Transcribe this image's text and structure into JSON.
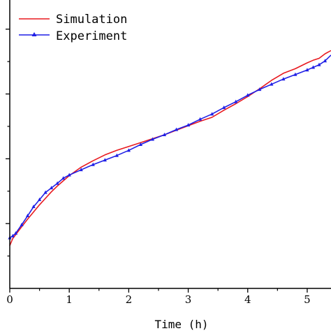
{
  "chart_data": {
    "type": "line",
    "xlabel": "Time (h)",
    "ylabel": "",
    "xlim": [
      0,
      5.4
    ],
    "ylim": [
      0,
      4.45
    ],
    "x_ticks": [
      0,
      1,
      2,
      3,
      4,
      5
    ],
    "x_tick_labels": [
      "0",
      "1",
      "2",
      "3",
      "4",
      "5"
    ],
    "y_major_ticks": [
      1,
      2,
      3,
      4
    ],
    "grid": false,
    "legend_position": "top-left",
    "series": [
      {
        "name": "Simulation",
        "color": "#e8191f",
        "marker": "none",
        "x": [
          0.0,
          0.05,
          0.1,
          0.2,
          0.3,
          0.4,
          0.5,
          0.6,
          0.7,
          0.8,
          0.9,
          1.0,
          1.2,
          1.4,
          1.6,
          1.8,
          2.0,
          2.2,
          2.4,
          2.6,
          2.8,
          3.0,
          3.2,
          3.4,
          3.6,
          3.8,
          4.0,
          4.2,
          4.4,
          4.6,
          4.8,
          5.0,
          5.1,
          5.2,
          5.3,
          5.4
        ],
        "y": [
          0.66,
          0.77,
          0.83,
          0.95,
          1.07,
          1.18,
          1.29,
          1.39,
          1.49,
          1.58,
          1.66,
          1.74,
          1.87,
          1.97,
          2.06,
          2.13,
          2.19,
          2.25,
          2.31,
          2.37,
          2.44,
          2.51,
          2.58,
          2.64,
          2.75,
          2.85,
          2.96,
          3.08,
          3.21,
          3.32,
          3.39,
          3.48,
          3.52,
          3.55,
          3.62,
          3.67
        ]
      },
      {
        "name": "Experiment",
        "color": "#1f1fe6",
        "marker": "triangle",
        "x": [
          0.0,
          0.05,
          0.1,
          0.2,
          0.3,
          0.4,
          0.5,
          0.6,
          0.7,
          0.8,
          0.9,
          1.0,
          1.2,
          1.4,
          1.6,
          1.8,
          2.0,
          2.2,
          2.4,
          2.6,
          2.8,
          3.0,
          3.2,
          3.4,
          3.6,
          3.8,
          4.0,
          4.2,
          4.4,
          4.6,
          4.8,
          5.0,
          5.1,
          5.2,
          5.3,
          5.4
        ],
        "y": [
          0.78,
          0.81,
          0.85,
          0.98,
          1.12,
          1.26,
          1.37,
          1.48,
          1.55,
          1.62,
          1.7,
          1.75,
          1.83,
          1.91,
          1.98,
          2.05,
          2.13,
          2.22,
          2.3,
          2.37,
          2.45,
          2.52,
          2.61,
          2.69,
          2.79,
          2.88,
          2.98,
          3.07,
          3.15,
          3.23,
          3.3,
          3.37,
          3.41,
          3.45,
          3.51,
          3.6
        ]
      }
    ]
  }
}
